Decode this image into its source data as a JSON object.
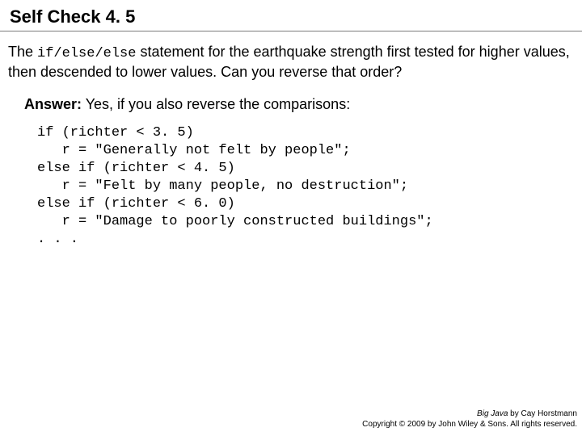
{
  "title": "Self Check 4. 5",
  "question_pre": "The ",
  "question_code": "if/else/else",
  "question_post": " statement for the earthquake strength first tested for higher values, then descended to lower values. Can you reverse that order?",
  "answer_label": "Answer:",
  "answer_text": " Yes, if you also reverse the comparisons:",
  "code": "if (richter < 3. 5)\n   r = \"Generally not felt by people\";\nelse if (richter < 4. 5)\n   r = \"Felt by many people, no destruction\";\nelse if (richter < 6. 0)\n   r = \"Damage to poorly constructed buildings\";\n. . .",
  "footer_book": "Big Java",
  "footer_author": " by Cay Horstmann",
  "footer_copyright": "Copyright © 2009 by John Wiley & Sons. All rights reserved.",
  "styling": {
    "slide_width": 720,
    "slide_height": 540,
    "background_color": "#ffffff",
    "text_color": "#000000",
    "divider_color": "#7a7a7a",
    "title_font": "Tahoma",
    "title_fontsize": 22,
    "title_weight": "bold",
    "body_font": "Arial",
    "body_fontsize": 18,
    "code_font": "Courier New",
    "code_fontsize": 17,
    "footer_fontsize": 10
  }
}
